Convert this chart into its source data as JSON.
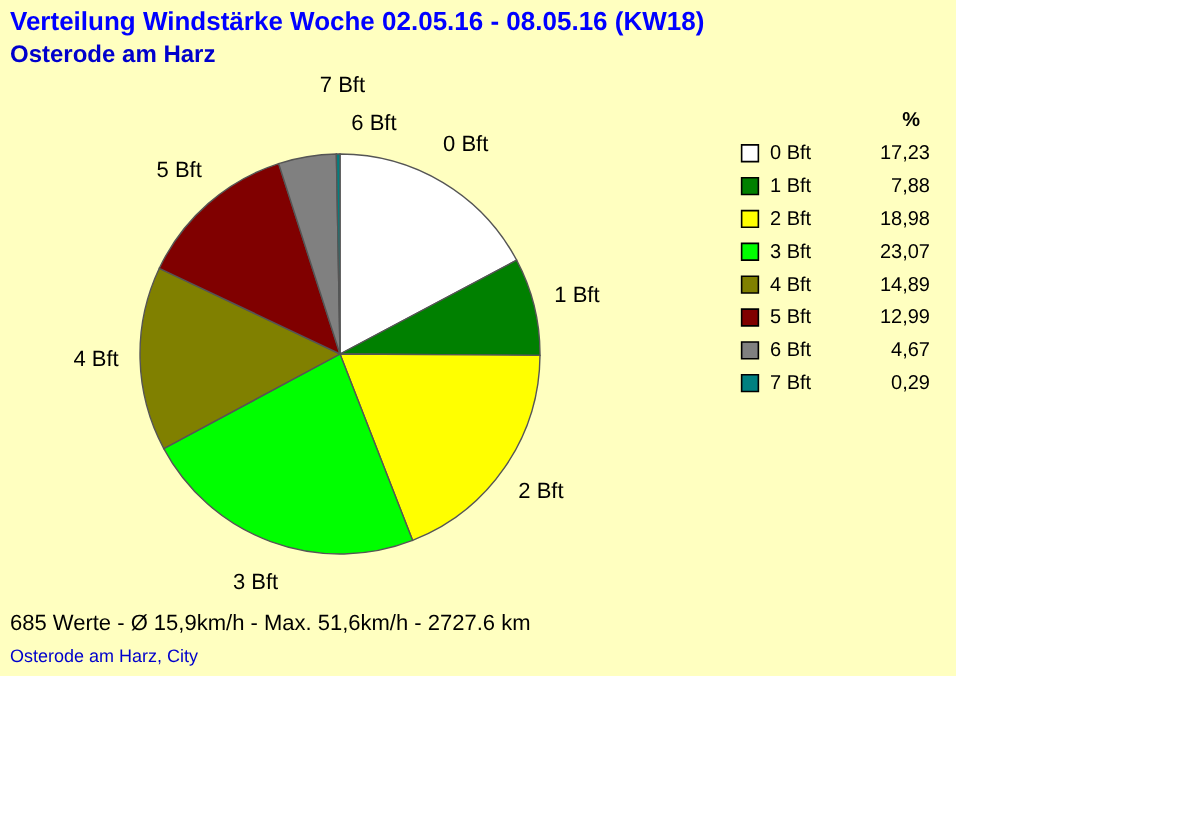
{
  "chart_data": {
    "type": "pie",
    "title": "Verteilung Windstärke  Woche 02.05.16 - 08.05.16 (KW18)",
    "subtitle": "Osterode am Harz",
    "legend_title": "%",
    "categories": [
      "0 Bft",
      "1 Bft",
      "2 Bft",
      "3 Bft",
      "4 Bft",
      "5 Bft",
      "6 Bft",
      "7 Bft"
    ],
    "values": [
      17.23,
      7.88,
      18.98,
      23.07,
      14.89,
      12.99,
      4.67,
      0.29
    ],
    "value_labels": [
      "17,23",
      "7,88",
      "18,98",
      "23,07",
      "14,89",
      "12,99",
      "4,67",
      "0,29"
    ],
    "colors": [
      "#ffffff",
      "#008000",
      "#ffff00",
      "#00ff00",
      "#808000",
      "#800000",
      "#808080",
      "#008080"
    ],
    "legend": "top right",
    "annotations": [
      "685 Werte   -   Ø 15,9km/h  -  Max. 51,6km/h  -   2727.6 km",
      "Osterode am Harz, City"
    ]
  }
}
